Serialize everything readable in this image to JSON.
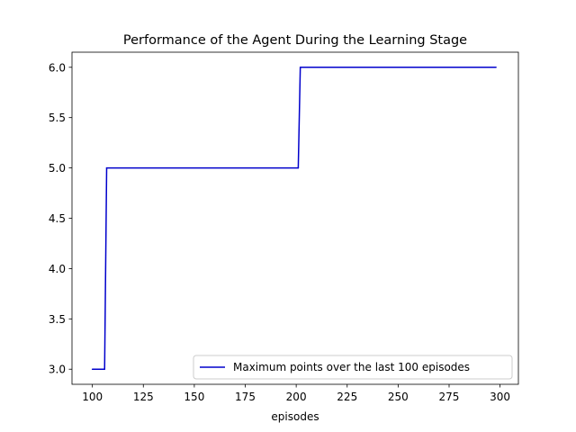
{
  "chart_data": {
    "type": "line",
    "title": "Performance of the Agent During the Learning Stage",
    "xlabel": "episodes",
    "ylabel": "",
    "xlim": [
      90,
      309
    ],
    "ylim": [
      2.85,
      6.15
    ],
    "xticks": [
      100,
      125,
      150,
      175,
      200,
      225,
      250,
      275,
      300
    ],
    "yticks": [
      3.0,
      3.5,
      4.0,
      4.5,
      5.0,
      5.5,
      6.0
    ],
    "ytick_labels": [
      "3.0",
      "3.5",
      "4.0",
      "4.5",
      "5.0",
      "5.5",
      "6.0"
    ],
    "legend_position": "lower-right",
    "grid": false,
    "series": [
      {
        "name": "Maximum points over the last 100 episodes",
        "color": "#0000cc",
        "x": [
          100,
          106,
          107,
          201,
          202,
          298
        ],
        "y": [
          3,
          3,
          5,
          5,
          6,
          6
        ]
      }
    ]
  }
}
